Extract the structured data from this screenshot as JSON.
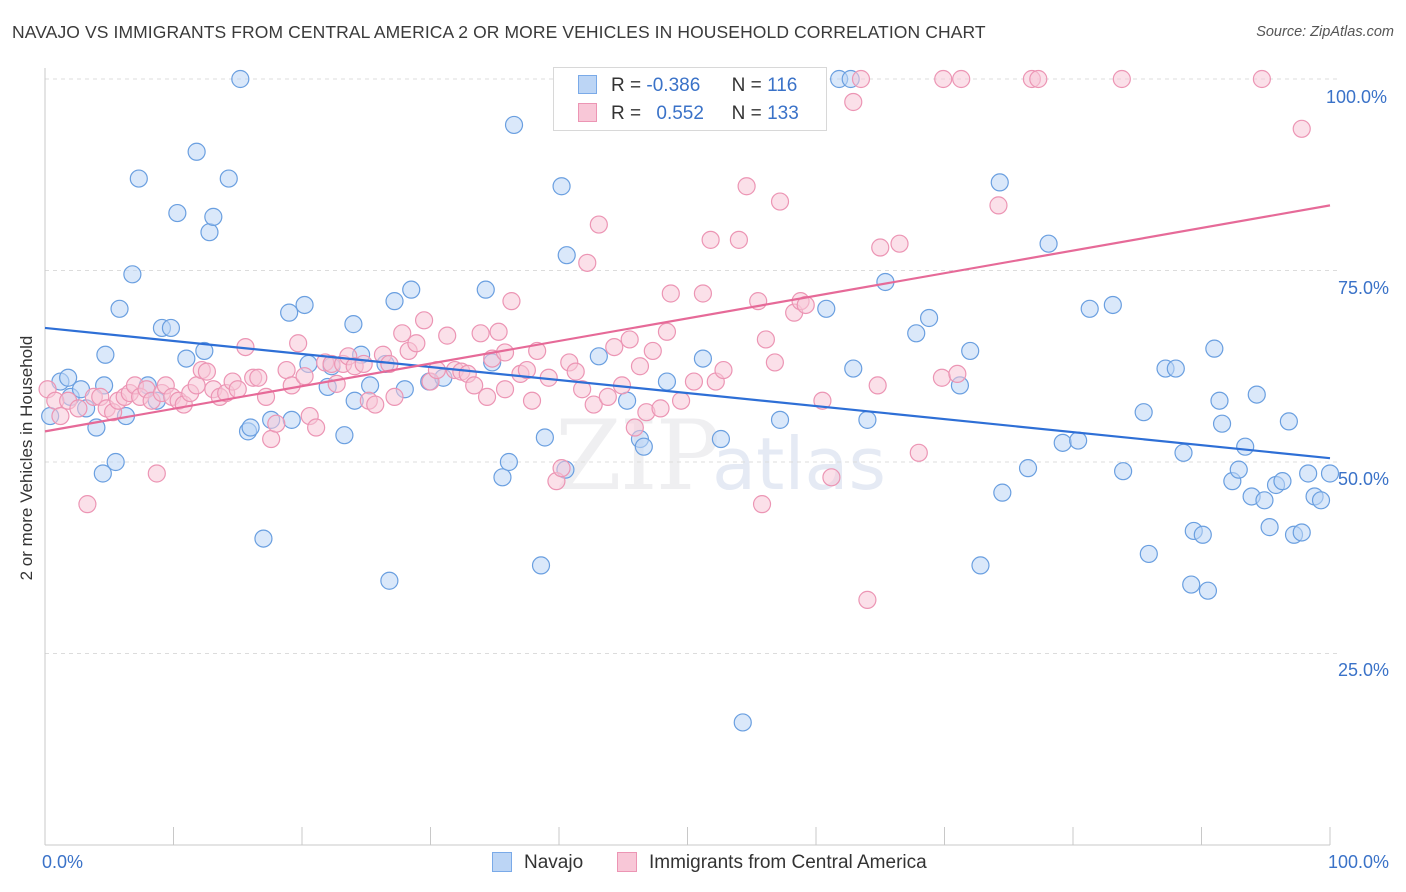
{
  "header": {
    "title": "NAVAJO VS IMMIGRANTS FROM CENTRAL AMERICA 2 OR MORE VEHICLES IN HOUSEHOLD CORRELATION CHART",
    "source": "Source: ZipAtlas.com"
  },
  "watermark": {
    "zip": "ZIP",
    "atlas": "atlas"
  },
  "legend": {
    "rows": [
      {
        "r_label": "R =",
        "r_value": "-0.386",
        "n_label": "N =",
        "n_value": "116",
        "color": "#7aaae8",
        "fill": "#bcd5f5"
      },
      {
        "r_label": "R =",
        "r_value": "0.552",
        "n_label": "N =",
        "n_value": "133",
        "color": "#ec95b4",
        "fill": "#f8c7d7"
      }
    ]
  },
  "bottom_legend": {
    "navajo": "Navajo",
    "immigrants": "Immigrants from Central America"
  },
  "chart_data": {
    "type": "scatter",
    "title": "NAVAJO VS IMMIGRANTS FROM CENTRAL AMERICA 2 OR MORE VEHICLES IN HOUSEHOLD CORRELATION CHART",
    "xlabel": "",
    "ylabel": "2 or more Vehicles in Household",
    "xlim": [
      0,
      100
    ],
    "ylim": [
      0,
      102
    ],
    "x_tick_labels": [
      "0.0%",
      "100.0%"
    ],
    "y_tick_labels": [
      "25.0%",
      "50.0%",
      "75.0%",
      "100.0%"
    ],
    "y_tick_values": [
      25,
      50,
      75,
      100
    ],
    "grid": true,
    "legend_position": "top-center",
    "series": [
      {
        "name": "Navajo",
        "color": "#6a9fe0",
        "fill": "#bcd5f5",
        "trend": {
          "x": [
            0,
            100
          ],
          "y": [
            67.5,
            50.5
          ],
          "color": "#2e6fd6"
        },
        "points": [
          [
            0.4,
            56
          ],
          [
            1.2,
            60.5
          ],
          [
            1.8,
            61
          ],
          [
            2,
            58.5
          ],
          [
            2.8,
            59.5
          ],
          [
            3.2,
            57
          ],
          [
            4,
            54.5
          ],
          [
            4.5,
            48.5
          ],
          [
            4.6,
            60
          ],
          [
            4.7,
            64
          ],
          [
            5.5,
            50
          ],
          [
            5.8,
            70
          ],
          [
            6.3,
            56
          ],
          [
            6.8,
            74.5
          ],
          [
            7.3,
            87
          ],
          [
            8,
            60
          ],
          [
            8.7,
            58
          ],
          [
            9.1,
            67.5
          ],
          [
            9.8,
            67.5
          ],
          [
            10.3,
            82.5
          ],
          [
            11,
            63.5
          ],
          [
            11.8,
            90.5
          ],
          [
            12.4,
            64.5
          ],
          [
            12.8,
            80
          ],
          [
            13.1,
            82
          ],
          [
            14.3,
            87
          ],
          [
            15.2,
            100
          ],
          [
            15.8,
            54
          ],
          [
            16,
            54.5
          ],
          [
            17,
            40
          ],
          [
            17.6,
            55.5
          ],
          [
            19,
            69.5
          ],
          [
            19.2,
            55.5
          ],
          [
            20.2,
            70.5
          ],
          [
            20.5,
            62.8
          ],
          [
            22,
            59.8
          ],
          [
            22.3,
            62.5
          ],
          [
            23.3,
            53.5
          ],
          [
            24,
            68
          ],
          [
            24.1,
            58
          ],
          [
            24.6,
            64
          ],
          [
            25.3,
            60
          ],
          [
            26.5,
            62.8
          ],
          [
            26.8,
            34.5
          ],
          [
            27.2,
            71
          ],
          [
            28,
            59.5
          ],
          [
            28.5,
            72.5
          ],
          [
            29.9,
            60.5
          ],
          [
            31,
            61
          ],
          [
            34.3,
            72.5
          ],
          [
            34.8,
            63
          ],
          [
            35.6,
            48
          ],
          [
            36.1,
            50
          ],
          [
            36.5,
            94
          ],
          [
            38.6,
            36.5
          ],
          [
            38.9,
            53.2
          ],
          [
            40.2,
            86
          ],
          [
            40.6,
            77
          ],
          [
            43.1,
            63.8
          ],
          [
            45.3,
            58
          ],
          [
            46.3,
            53
          ],
          [
            46.6,
            52
          ],
          [
            48.4,
            60.5
          ],
          [
            52.6,
            53
          ],
          [
            54.3,
            16
          ],
          [
            57.2,
            55.5
          ],
          [
            60.8,
            70
          ],
          [
            61.8,
            100
          ],
          [
            62.7,
            100
          ],
          [
            62.9,
            62.2
          ],
          [
            64,
            55.5
          ],
          [
            65.4,
            73.5
          ],
          [
            67.8,
            66.8
          ],
          [
            68.8,
            68.8
          ],
          [
            71.2,
            60
          ],
          [
            72,
            64.5
          ],
          [
            72.8,
            36.5
          ],
          [
            74.3,
            86.5
          ],
          [
            74.5,
            46
          ],
          [
            76.5,
            49.2
          ],
          [
            78.1,
            78.5
          ],
          [
            79.2,
            52.5
          ],
          [
            80.4,
            52.8
          ],
          [
            81.3,
            70
          ],
          [
            83.1,
            70.5
          ],
          [
            83.9,
            48.8
          ],
          [
            85.5,
            56.5
          ],
          [
            85.9,
            38
          ],
          [
            87.2,
            62.2
          ],
          [
            88,
            62.2
          ],
          [
            88.6,
            51.2
          ],
          [
            89.2,
            34
          ],
          [
            89.4,
            41
          ],
          [
            90.1,
            40.5
          ],
          [
            90.5,
            33.2
          ],
          [
            91,
            64.8
          ],
          [
            91.4,
            58
          ],
          [
            91.6,
            55
          ],
          [
            92.4,
            47.5
          ],
          [
            92.9,
            49
          ],
          [
            93.4,
            52
          ],
          [
            93.9,
            45.5
          ],
          [
            94.3,
            58.8
          ],
          [
            94.9,
            45
          ],
          [
            95.3,
            41.5
          ],
          [
            95.8,
            47
          ],
          [
            96.3,
            47.5
          ],
          [
            96.8,
            55.3
          ],
          [
            97.2,
            40.5
          ],
          [
            97.8,
            40.8
          ],
          [
            98.3,
            48.5
          ],
          [
            98.8,
            45.5
          ],
          [
            99.3,
            45
          ],
          [
            100,
            48.5
          ],
          [
            40.5,
            49
          ],
          [
            51.2,
            63.5
          ]
        ]
      },
      {
        "name": "Immigrants from Central America",
        "color": "#ec95b4",
        "fill": "#f8c7d7",
        "trend": {
          "x": [
            0,
            100
          ],
          "y": [
            54,
            83.5
          ],
          "color": "#e66a98"
        },
        "points": [
          [
            0.2,
            59.5
          ],
          [
            0.8,
            58
          ],
          [
            1.2,
            56
          ],
          [
            1.8,
            58
          ],
          [
            2.6,
            57
          ],
          [
            3.3,
            44.5
          ],
          [
            3.8,
            58.5
          ],
          [
            4.3,
            58.5
          ],
          [
            4.8,
            57
          ],
          [
            5.3,
            56.5
          ],
          [
            5.7,
            58
          ],
          [
            6.2,
            58.5
          ],
          [
            6.6,
            59
          ],
          [
            7,
            60
          ],
          [
            7.4,
            58.5
          ],
          [
            7.9,
            59.5
          ],
          [
            8.3,
            58
          ],
          [
            8.7,
            48.5
          ],
          [
            9.1,
            59
          ],
          [
            9.4,
            60
          ],
          [
            9.9,
            58.5
          ],
          [
            10.4,
            58
          ],
          [
            10.8,
            57.5
          ],
          [
            11.3,
            59
          ],
          [
            11.8,
            60
          ],
          [
            12.2,
            62
          ],
          [
            12.6,
            61.8
          ],
          [
            13.1,
            59.5
          ],
          [
            13.6,
            58.5
          ],
          [
            14.1,
            59
          ],
          [
            14.6,
            60.5
          ],
          [
            15,
            59.5
          ],
          [
            15.6,
            65
          ],
          [
            16.2,
            61
          ],
          [
            16.6,
            61
          ],
          [
            17.2,
            58.5
          ],
          [
            17.6,
            53
          ],
          [
            18,
            55
          ],
          [
            18.8,
            62
          ],
          [
            19.2,
            60
          ],
          [
            19.7,
            65.5
          ],
          [
            20.2,
            61.2
          ],
          [
            20.6,
            56
          ],
          [
            21.1,
            54.5
          ],
          [
            21.8,
            63
          ],
          [
            22.3,
            62.8
          ],
          [
            22.7,
            60.2
          ],
          [
            23.2,
            62.8
          ],
          [
            23.6,
            63.8
          ],
          [
            24.1,
            62.5
          ],
          [
            24.8,
            62.8
          ],
          [
            25.2,
            58
          ],
          [
            25.7,
            57.5
          ],
          [
            26.3,
            64
          ],
          [
            26.8,
            62.8
          ],
          [
            27.2,
            58.5
          ],
          [
            27.8,
            66.8
          ],
          [
            28.3,
            64.5
          ],
          [
            28.9,
            65.5
          ],
          [
            29.5,
            68.5
          ],
          [
            30,
            60.5
          ],
          [
            30.5,
            62
          ],
          [
            31.3,
            66.5
          ],
          [
            31.9,
            62
          ],
          [
            32.4,
            61.8
          ],
          [
            32.9,
            61.5
          ],
          [
            33.4,
            60
          ],
          [
            33.9,
            66.8
          ],
          [
            34.4,
            58.5
          ],
          [
            34.8,
            63.5
          ],
          [
            35.3,
            67
          ],
          [
            35.8,
            59.5
          ],
          [
            36.3,
            71
          ],
          [
            37,
            61.5
          ],
          [
            37.5,
            62
          ],
          [
            37.9,
            58
          ],
          [
            38.3,
            64.5
          ],
          [
            39.2,
            61
          ],
          [
            39.8,
            47.5
          ],
          [
            40.2,
            49.2
          ],
          [
            40.8,
            63
          ],
          [
            41.3,
            61.8
          ],
          [
            41.8,
            59.5
          ],
          [
            42.2,
            76
          ],
          [
            42.7,
            57.5
          ],
          [
            43.1,
            81
          ],
          [
            43.8,
            58.5
          ],
          [
            44.3,
            65
          ],
          [
            44.9,
            60
          ],
          [
            45.5,
            66
          ],
          [
            45.9,
            54.5
          ],
          [
            46.3,
            62.5
          ],
          [
            46.8,
            56.5
          ],
          [
            47.3,
            64.5
          ],
          [
            47.9,
            57
          ],
          [
            48.4,
            67
          ],
          [
            48.7,
            72
          ],
          [
            49.5,
            58
          ],
          [
            50.5,
            60.5
          ],
          [
            51.2,
            72
          ],
          [
            51.8,
            79
          ],
          [
            52.2,
            60.5
          ],
          [
            52.8,
            62
          ],
          [
            54,
            79
          ],
          [
            54.6,
            86
          ],
          [
            55.5,
            71
          ],
          [
            55.8,
            44.5
          ],
          [
            56.1,
            66
          ],
          [
            56.8,
            63
          ],
          [
            57.2,
            84
          ],
          [
            58.3,
            69.5
          ],
          [
            58.8,
            71
          ],
          [
            59.2,
            70.5
          ],
          [
            60.5,
            58
          ],
          [
            61.2,
            48
          ],
          [
            62.9,
            97
          ],
          [
            63.5,
            100
          ],
          [
            64,
            32
          ],
          [
            65,
            78
          ],
          [
            66.5,
            78.5
          ],
          [
            68,
            51.2
          ],
          [
            69.8,
            61
          ],
          [
            69.9,
            100
          ],
          [
            71,
            61.5
          ],
          [
            74.2,
            83.5
          ],
          [
            76.8,
            100
          ],
          [
            77.3,
            100
          ],
          [
            83.8,
            100
          ],
          [
            94.7,
            100
          ],
          [
            97.8,
            93.5
          ],
          [
            71.3,
            100
          ],
          [
            64.8,
            60
          ],
          [
            35.8,
            64.3
          ]
        ]
      }
    ]
  }
}
